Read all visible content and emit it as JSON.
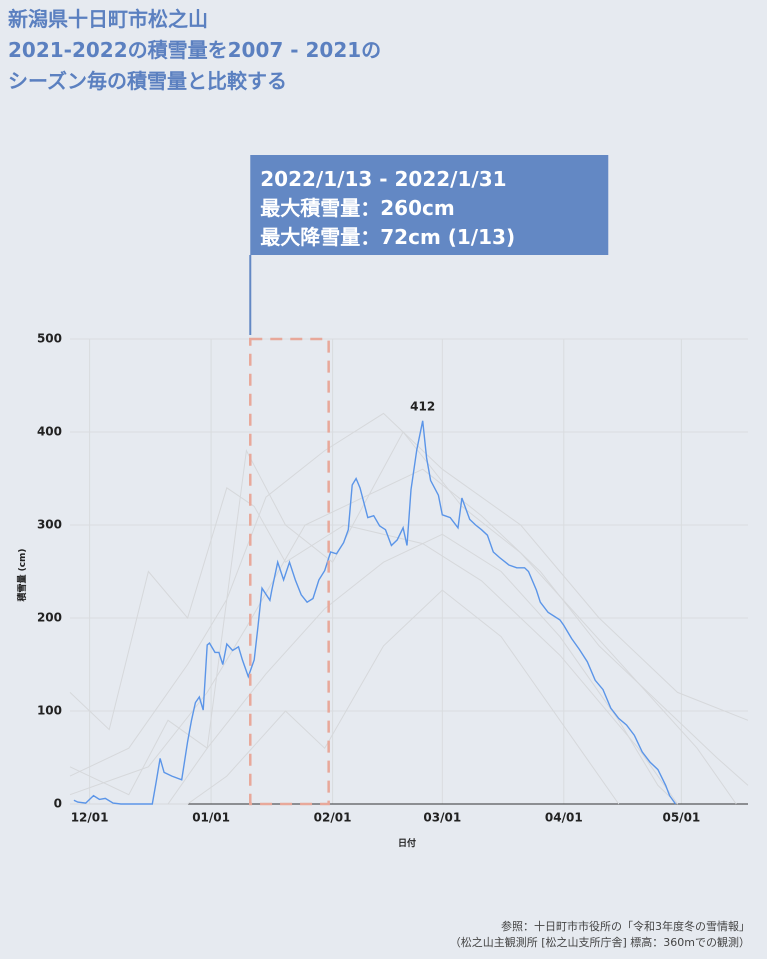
{
  "chart_data": {
    "type": "line",
    "title": [
      "新潟県十日町市松之山",
      "2021-2022の積雪量を2007 - 2021の",
      "シーズン毎の積雪量と比較する"
    ],
    "xlabel": "日付",
    "ylabel": "積雪量 (cm)",
    "xlim": [
      -5,
      168
    ],
    "ylim": [
      0,
      500
    ],
    "xticks": [
      {
        "value": 0,
        "label": "12/01"
      },
      {
        "value": 31,
        "label": "01/01"
      },
      {
        "value": 62,
        "label": "02/01"
      },
      {
        "value": 90,
        "label": "03/01"
      },
      {
        "value": 121,
        "label": "04/01"
      },
      {
        "value": 151,
        "label": "05/01"
      }
    ],
    "yticks": [
      0,
      100,
      200,
      300,
      400,
      500
    ],
    "grid": true,
    "series": [
      {
        "color": "#5b95e8",
        "x": [
          -4,
          -3,
          -1,
          1,
          2.5,
          4,
          6,
          8,
          16,
          17,
          18,
          19,
          21,
          23.5,
          25,
          26,
          27,
          28,
          29,
          30,
          30.6,
          32,
          33,
          34,
          35,
          36.5,
          38,
          39,
          40.5,
          42,
          43,
          44,
          46,
          46.5,
          48,
          49.5,
          51,
          52.5,
          54,
          55.5,
          57,
          58.5,
          60,
          61.5,
          63,
          64.8,
          66,
          67,
          68,
          69,
          71,
          72.5,
          74,
          75.5,
          77,
          78.5,
          80,
          81,
          82,
          83.5,
          85,
          86,
          87,
          89,
          90,
          92,
          94,
          95,
          97,
          98.5,
          100,
          101.5,
          103,
          104.6,
          107,
          109,
          111,
          112,
          114,
          115,
          117,
          120,
          121,
          123,
          125,
          127,
          129,
          131,
          133,
          135,
          137,
          139,
          141,
          143,
          145,
          147,
          148,
          149.5
        ],
        "values": [
          4,
          2,
          1,
          9,
          5,
          6,
          1,
          0,
          0,
          24,
          49,
          34,
          30,
          26,
          67,
          90,
          109,
          115,
          101,
          171,
          173,
          163,
          163,
          150,
          172,
          165,
          169,
          155,
          137,
          155,
          192,
          232,
          219,
          230,
          260,
          241,
          260,
          241,
          225,
          217,
          221,
          241,
          251,
          271,
          269,
          281,
          295,
          343,
          350,
          340,
          308,
          310,
          299,
          295,
          278,
          284,
          297,
          278,
          338,
          381,
          412,
          372,
          348,
          332,
          311,
          308,
          297,
          329,
          306,
          300,
          295,
          289,
          271,
          265,
          257,
          254,
          254,
          250,
          230,
          217,
          206,
          198,
          192,
          178,
          166,
          153,
          133,
          123,
          103,
          92,
          85,
          74,
          56,
          45,
          37,
          20,
          9,
          0
        ]
      }
    ],
    "background_series": [
      {
        "color": "#d6d8db",
        "x": [
          -5,
          10,
          25,
          35,
          45,
          60,
          75,
          90,
          110,
          130,
          150,
          168
        ],
        "values": [
          30,
          60,
          150,
          220,
          330,
          380,
          420,
          360,
          300,
          200,
          120,
          90
        ]
      },
      {
        "color": "#d6d8db",
        "x": [
          -5,
          5,
          15,
          25,
          35,
          42,
          50,
          65,
          85,
          100,
          120,
          140,
          150
        ],
        "values": [
          120,
          80,
          250,
          200,
          340,
          320,
          260,
          300,
          280,
          240,
          160,
          60,
          0
        ]
      },
      {
        "color": "#d6d8db",
        "x": [
          -5,
          20,
          30,
          45,
          60,
          75,
          90,
          105,
          120,
          135,
          145,
          150
        ],
        "values": [
          0,
          0,
          60,
          140,
          210,
          260,
          290,
          250,
          180,
          90,
          20,
          0
        ]
      },
      {
        "color": "#d6d8db",
        "x": [
          -5,
          15,
          30,
          40,
          55,
          70,
          85,
          100,
          115,
          130,
          145,
          160,
          168
        ],
        "values": [
          10,
          40,
          120,
          190,
          300,
          330,
          360,
          310,
          250,
          170,
          110,
          50,
          20
        ]
      },
      {
        "color": "#d6d8db",
        "x": [
          -5,
          25,
          35,
          50,
          60,
          75,
          90,
          105,
          115,
          125,
          135
        ],
        "values": [
          0,
          0,
          30,
          100,
          60,
          170,
          230,
          180,
          120,
          60,
          0
        ]
      },
      {
        "color": "#d6d8db",
        "x": [
          -5,
          10,
          20,
          30,
          40,
          50,
          62,
          80,
          95,
          110,
          125,
          140,
          155,
          165
        ],
        "values": [
          40,
          10,
          90,
          60,
          380,
          300,
          260,
          400,
          320,
          270,
          200,
          130,
          60,
          0
        ]
      }
    ],
    "highlight": {
      "x": [
        41,
        61
      ],
      "color": "#e8a89a"
    },
    "annotation": [
      "2022/1/13 - 2022/1/31",
      "最大積雪量：260cm",
      "最大降雪量：72cm (1/13)"
    ],
    "annotation_color": "#6388c4",
    "source": [
      "参照：十日町市市役所の「令和3年度冬の雪情報」",
      "（松之山主観測所 [松之山支所庁舎] 標高：360mでの観測）"
    ]
  }
}
